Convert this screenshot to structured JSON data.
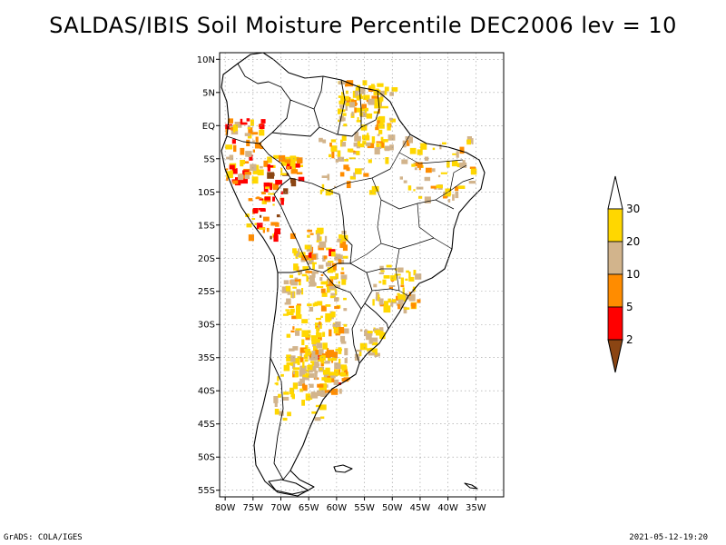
{
  "title": "SALDAS/IBIS Soil Moisture Percentile DEC2006 lev = 10",
  "footer": {
    "left": "GrADS: COLA/IGES",
    "right": "2021-05-12-19:20"
  },
  "map": {
    "lon_range": [
      -81,
      -30
    ],
    "lat_range": [
      -56,
      11
    ],
    "lat_ticks": [
      {
        "value": 10,
        "label": "10N"
      },
      {
        "value": 5,
        "label": "5N"
      },
      {
        "value": 0,
        "label": "EQ"
      },
      {
        "value": -5,
        "label": "5S"
      },
      {
        "value": -10,
        "label": "10S"
      },
      {
        "value": -15,
        "label": "15S"
      },
      {
        "value": -20,
        "label": "20S"
      },
      {
        "value": -25,
        "label": "25S"
      },
      {
        "value": -30,
        "label": "30S"
      },
      {
        "value": -35,
        "label": "35S"
      },
      {
        "value": -40,
        "label": "40S"
      },
      {
        "value": -45,
        "label": "45S"
      },
      {
        "value": -50,
        "label": "50S"
      },
      {
        "value": -55,
        "label": "55S"
      }
    ],
    "lon_ticks": [
      {
        "value": -80,
        "label": "80W"
      },
      {
        "value": -75,
        "label": "75W"
      },
      {
        "value": -70,
        "label": "70W"
      },
      {
        "value": -65,
        "label": "65W"
      },
      {
        "value": -60,
        "label": "60W"
      },
      {
        "value": -55,
        "label": "55W"
      },
      {
        "value": -50,
        "label": "50W"
      },
      {
        "value": -45,
        "label": "45W"
      },
      {
        "value": -40,
        "label": "40W"
      },
      {
        "value": -35,
        "label": "35W"
      }
    ]
  },
  "colorbar": {
    "levels": [
      {
        "label": "2",
        "color": "#8b4513"
      },
      {
        "label": "5",
        "color": "#ff0000"
      },
      {
        "label": "10",
        "color": "#ff8c00"
      },
      {
        "label": "20",
        "color": "#d2b48c"
      },
      {
        "label": "30",
        "color": "#ffd700"
      }
    ],
    "top_color": "#ffffff"
  }
}
